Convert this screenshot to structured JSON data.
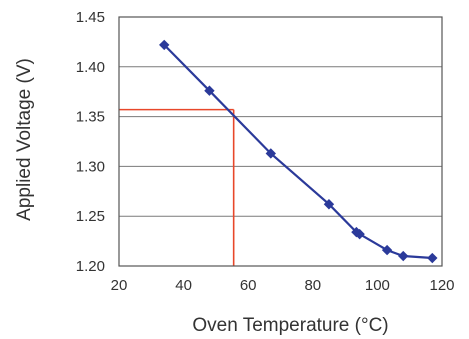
{
  "chart_data": {
    "type": "line",
    "title": "",
    "xlabel": "Oven Temperature (°C)",
    "ylabel": "Applied Voltage (V)",
    "xlim": [
      20,
      120
    ],
    "ylim": [
      1.2,
      1.45
    ],
    "x_ticks": [
      20,
      40,
      60,
      80,
      100,
      120
    ],
    "y_ticks": [
      1.2,
      1.25,
      1.3,
      1.35,
      1.4,
      1.45
    ],
    "x_tick_labels": [
      "20",
      "40",
      "60",
      "80",
      "100",
      "120"
    ],
    "y_tick_labels": [
      "1.20",
      "1.25",
      "1.30",
      "1.35",
      "1.40",
      "1.45"
    ],
    "grid": {
      "horizontal": true,
      "vertical": false
    },
    "series": [
      {
        "color": "#2b3a9a",
        "marker": "diamond",
        "points": [
          {
            "x": 34,
            "y": 1.422
          },
          {
            "x": 48,
            "y": 1.376
          },
          {
            "x": 67,
            "y": 1.313
          },
          {
            "x": 85,
            "y": 1.262
          },
          {
            "x": 93.5,
            "y": 1.234
          },
          {
            "x": 94.5,
            "y": 1.232
          },
          {
            "x": 103,
            "y": 1.216
          },
          {
            "x": 108,
            "y": 1.21
          },
          {
            "x": 117,
            "y": 1.208
          }
        ]
      }
    ],
    "annotations": [
      {
        "type": "reference-lines",
        "x": 55.5,
        "y": 1.357,
        "color": "#e8472a"
      }
    ]
  }
}
